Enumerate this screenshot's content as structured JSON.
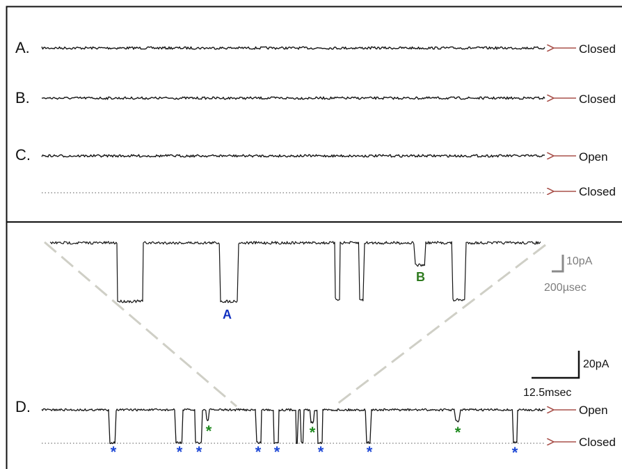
{
  "colors": {
    "trace": "#141414",
    "arrow": "#a8504a",
    "event_a": "#1030c0",
    "event_b": "#2e7a1e",
    "star_blue": "#1f49d6",
    "star_green": "#1f8a1f",
    "zoom_dash": "#cfcfc6",
    "scale_bar_small": "#8a8a8a"
  },
  "top_panel": {
    "rows": [
      {
        "label": "A.",
        "state": "Closed"
      },
      {
        "label": "B.",
        "state": "Closed"
      },
      {
        "label": "C.",
        "state": "Open"
      }
    ],
    "baseline_state": "Closed"
  },
  "zoom_inset": {
    "event_labels": {
      "a": "A",
      "b": "B"
    },
    "scale_current": "10pA",
    "scale_time": "200µsec"
  },
  "bottom_panel": {
    "row_label": "D.",
    "open_label": "Open",
    "closed_label": "Closed",
    "scale_current": "20pA",
    "scale_time": "12.5msec",
    "star_symbol": "*"
  },
  "icons": {
    "state_arrow": "left-arrow-icon",
    "star_marker": "asterisk-icon"
  }
}
